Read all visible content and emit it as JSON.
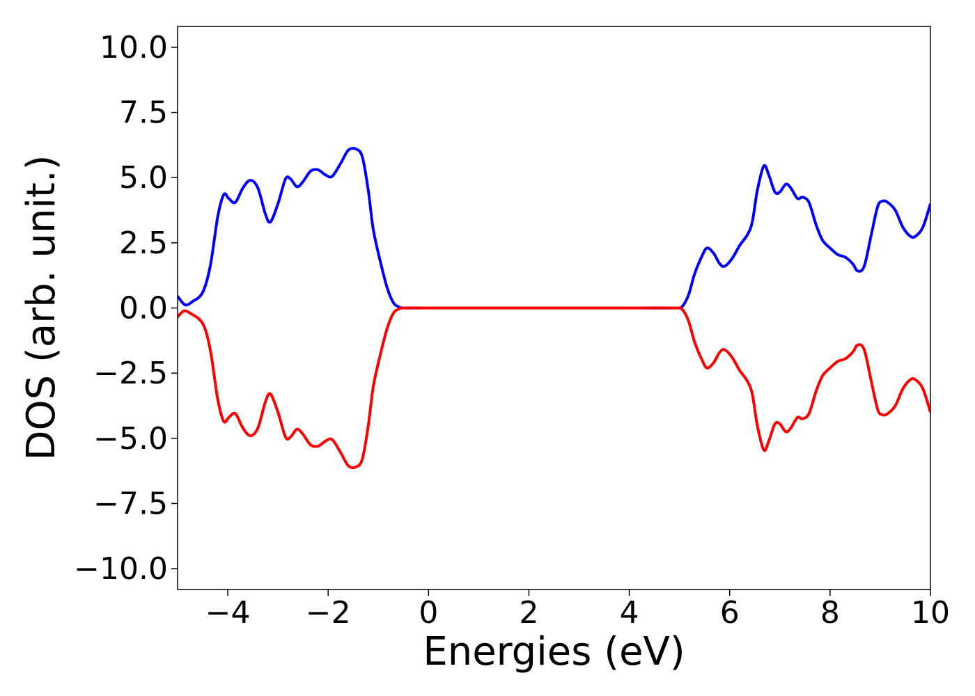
{
  "chart_data": {
    "type": "line",
    "title": "",
    "xlabel": "Energies (eV)",
    "ylabel": "DOS (arb. unit.)",
    "xlim": [
      -5,
      10
    ],
    "ylim": [
      -10.8,
      10.8
    ],
    "grid": false,
    "x_ticks": [
      -4,
      -2,
      0,
      2,
      4,
      6,
      8,
      10
    ],
    "x_tick_labels": [
      "−4",
      "−2",
      "0",
      "2",
      "4",
      "6",
      "8",
      "10"
    ],
    "y_ticks": [
      10.0,
      7.5,
      5.0,
      2.5,
      0.0,
      -2.5,
      -5.0,
      -7.5,
      -10.0
    ],
    "y_tick_labels": [
      "10.0",
      "7.5",
      "5.0",
      "2.5",
      "0.0",
      "−2.5",
      "−5.0",
      "−7.5",
      "−10.0"
    ],
    "series": [
      {
        "color": "#0000ff",
        "points": [
          [
            -5.0,
            0.45
          ],
          [
            -4.85,
            0.12
          ],
          [
            -4.7,
            0.25
          ],
          [
            -4.5,
            0.6
          ],
          [
            -4.35,
            1.6
          ],
          [
            -4.2,
            3.5
          ],
          [
            -4.08,
            4.35
          ],
          [
            -3.98,
            4.2
          ],
          [
            -3.85,
            4.05
          ],
          [
            -3.7,
            4.6
          ],
          [
            -3.55,
            4.9
          ],
          [
            -3.4,
            4.6
          ],
          [
            -3.25,
            3.6
          ],
          [
            -3.15,
            3.3
          ],
          [
            -3.0,
            4.0
          ],
          [
            -2.85,
            4.95
          ],
          [
            -2.75,
            4.95
          ],
          [
            -2.62,
            4.65
          ],
          [
            -2.5,
            4.85
          ],
          [
            -2.35,
            5.25
          ],
          [
            -2.2,
            5.3
          ],
          [
            -2.05,
            5.1
          ],
          [
            -1.92,
            5.05
          ],
          [
            -1.75,
            5.55
          ],
          [
            -1.6,
            6.05
          ],
          [
            -1.45,
            6.1
          ],
          [
            -1.32,
            5.8
          ],
          [
            -1.2,
            4.5
          ],
          [
            -1.1,
            3.0
          ],
          [
            -0.95,
            1.7
          ],
          [
            -0.82,
            0.75
          ],
          [
            -0.7,
            0.2
          ],
          [
            -0.6,
            0.05
          ],
          [
            -0.5,
            0.0
          ],
          [
            0.0,
            0.0
          ],
          [
            2.0,
            0.0
          ],
          [
            4.0,
            0.0
          ],
          [
            4.9,
            0.0
          ],
          [
            5.05,
            0.05
          ],
          [
            5.18,
            0.5
          ],
          [
            5.3,
            1.3
          ],
          [
            5.45,
            2.0
          ],
          [
            5.55,
            2.3
          ],
          [
            5.68,
            2.1
          ],
          [
            5.8,
            1.7
          ],
          [
            5.9,
            1.6
          ],
          [
            6.05,
            1.9
          ],
          [
            6.2,
            2.4
          ],
          [
            6.35,
            2.8
          ],
          [
            6.45,
            3.3
          ],
          [
            6.55,
            4.5
          ],
          [
            6.68,
            5.45
          ],
          [
            6.78,
            5.1
          ],
          [
            6.9,
            4.45
          ],
          [
            7.0,
            4.45
          ],
          [
            7.12,
            4.75
          ],
          [
            7.22,
            4.6
          ],
          [
            7.35,
            4.2
          ],
          [
            7.45,
            4.25
          ],
          [
            7.58,
            4.05
          ],
          [
            7.72,
            3.2
          ],
          [
            7.85,
            2.6
          ],
          [
            8.0,
            2.3
          ],
          [
            8.15,
            2.05
          ],
          [
            8.3,
            1.95
          ],
          [
            8.45,
            1.7
          ],
          [
            8.55,
            1.42
          ],
          [
            8.68,
            1.6
          ],
          [
            8.82,
            2.8
          ],
          [
            8.95,
            3.9
          ],
          [
            9.05,
            4.1
          ],
          [
            9.15,
            4.05
          ],
          [
            9.3,
            3.75
          ],
          [
            9.45,
            3.1
          ],
          [
            9.6,
            2.75
          ],
          [
            9.7,
            2.75
          ],
          [
            9.85,
            3.1
          ],
          [
            10.0,
            4.0
          ]
        ]
      },
      {
        "color": "#ff0000",
        "points": [
          [
            -5.0,
            -0.35
          ],
          [
            -4.88,
            -0.12
          ],
          [
            -4.75,
            -0.2
          ],
          [
            -4.5,
            -0.6
          ],
          [
            -4.35,
            -1.6
          ],
          [
            -4.2,
            -3.5
          ],
          [
            -4.08,
            -4.35
          ],
          [
            -3.98,
            -4.2
          ],
          [
            -3.85,
            -4.05
          ],
          [
            -3.7,
            -4.6
          ],
          [
            -3.55,
            -4.9
          ],
          [
            -3.4,
            -4.6
          ],
          [
            -3.25,
            -3.6
          ],
          [
            -3.15,
            -3.3
          ],
          [
            -3.0,
            -4.0
          ],
          [
            -2.85,
            -4.95
          ],
          [
            -2.75,
            -4.95
          ],
          [
            -2.62,
            -4.65
          ],
          [
            -2.5,
            -4.85
          ],
          [
            -2.35,
            -5.25
          ],
          [
            -2.2,
            -5.3
          ],
          [
            -2.05,
            -5.1
          ],
          [
            -1.92,
            -5.05
          ],
          [
            -1.75,
            -5.55
          ],
          [
            -1.6,
            -6.05
          ],
          [
            -1.45,
            -6.1
          ],
          [
            -1.32,
            -5.8
          ],
          [
            -1.2,
            -4.5
          ],
          [
            -1.1,
            -3.0
          ],
          [
            -0.95,
            -1.7
          ],
          [
            -0.82,
            -0.75
          ],
          [
            -0.7,
            -0.2
          ],
          [
            -0.6,
            -0.05
          ],
          [
            -0.5,
            0.0
          ],
          [
            0.0,
            0.0
          ],
          [
            2.0,
            0.0
          ],
          [
            4.0,
            0.0
          ],
          [
            4.9,
            0.0
          ],
          [
            5.05,
            -0.05
          ],
          [
            5.18,
            -0.5
          ],
          [
            5.3,
            -1.3
          ],
          [
            5.45,
            -2.0
          ],
          [
            5.55,
            -2.3
          ],
          [
            5.68,
            -2.1
          ],
          [
            5.8,
            -1.7
          ],
          [
            5.9,
            -1.6
          ],
          [
            6.05,
            -1.9
          ],
          [
            6.2,
            -2.4
          ],
          [
            6.35,
            -2.8
          ],
          [
            6.45,
            -3.3
          ],
          [
            6.55,
            -4.5
          ],
          [
            6.68,
            -5.45
          ],
          [
            6.78,
            -5.1
          ],
          [
            6.9,
            -4.45
          ],
          [
            7.0,
            -4.45
          ],
          [
            7.12,
            -4.75
          ],
          [
            7.22,
            -4.6
          ],
          [
            7.35,
            -4.2
          ],
          [
            7.45,
            -4.25
          ],
          [
            7.58,
            -4.05
          ],
          [
            7.72,
            -3.2
          ],
          [
            7.85,
            -2.6
          ],
          [
            8.0,
            -2.3
          ],
          [
            8.15,
            -2.05
          ],
          [
            8.3,
            -1.95
          ],
          [
            8.45,
            -1.7
          ],
          [
            8.55,
            -1.42
          ],
          [
            8.68,
            -1.6
          ],
          [
            8.82,
            -2.8
          ],
          [
            8.95,
            -3.9
          ],
          [
            9.05,
            -4.1
          ],
          [
            9.15,
            -4.05
          ],
          [
            9.3,
            -3.75
          ],
          [
            9.45,
            -3.1
          ],
          [
            9.6,
            -2.75
          ],
          [
            9.7,
            -2.75
          ],
          [
            9.85,
            -3.1
          ],
          [
            10.0,
            -4.0
          ]
        ]
      }
    ]
  }
}
